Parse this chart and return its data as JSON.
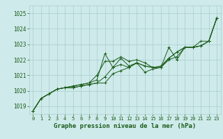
{
  "title": "Graphe pression niveau de la mer (hPa)",
  "background_color": "#ceeaea",
  "grid_color": "#aacccc",
  "line_color": "#1a5c1a",
  "xlim": [
    -0.5,
    23.5
  ],
  "ylim": [
    1018.5,
    1025.5
  ],
  "xticks": [
    0,
    1,
    2,
    3,
    4,
    5,
    6,
    7,
    8,
    9,
    10,
    11,
    12,
    13,
    14,
    15,
    16,
    17,
    18,
    19,
    20,
    21,
    22,
    23
  ],
  "yticks": [
    1019,
    1020,
    1021,
    1022,
    1023,
    1024,
    1025
  ],
  "series": [
    [
      1018.7,
      1019.5,
      1019.8,
      1020.1,
      1020.2,
      1020.3,
      1020.4,
      1020.5,
      1020.7,
      1022.4,
      1021.5,
      1022.1,
      1021.6,
      1021.8,
      1021.2,
      1021.4,
      1021.5,
      1022.8,
      1022.0,
      1022.8,
      1022.8,
      1023.2,
      1023.2,
      1024.7
    ],
    [
      1018.7,
      1019.5,
      1019.8,
      1020.1,
      1020.2,
      1020.3,
      1020.4,
      1020.5,
      1021.0,
      1021.9,
      1021.9,
      1022.2,
      1021.9,
      1022.0,
      1021.8,
      1021.5,
      1021.5,
      1022.0,
      1022.2,
      1022.8,
      1022.8,
      1022.9,
      1023.2,
      1024.7
    ],
    [
      1018.7,
      1019.5,
      1019.8,
      1020.1,
      1020.2,
      1020.2,
      1020.3,
      1020.4,
      1020.5,
      1020.9,
      1021.5,
      1021.7,
      1021.5,
      1021.8,
      1021.6,
      1021.5,
      1021.5,
      1022.1,
      1022.5,
      1022.8,
      1022.8,
      1022.9,
      1023.2,
      1024.7
    ],
    [
      1018.7,
      1019.5,
      1019.8,
      1020.1,
      1020.2,
      1020.2,
      1020.3,
      1020.4,
      1020.5,
      1020.5,
      1021.1,
      1021.3,
      1021.5,
      1021.8,
      1021.6,
      1021.5,
      1021.6,
      1022.1,
      1022.5,
      1022.8,
      1022.8,
      1022.9,
      1023.2,
      1024.7
    ]
  ]
}
